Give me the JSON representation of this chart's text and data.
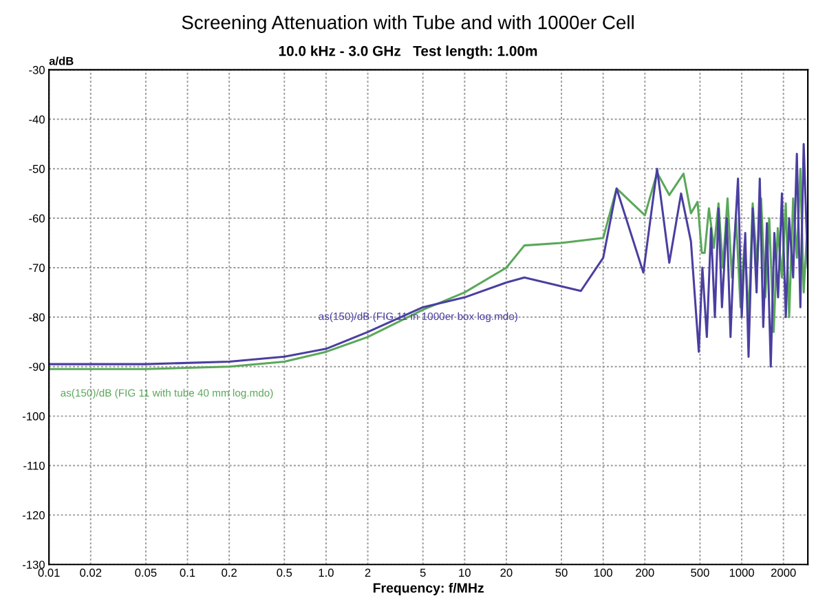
{
  "chart_data": {
    "type": "line",
    "title": "Screening Attenuation with Tube and with 1000er Cell",
    "subtitle": "10.0 kHz - 3.0 GHz   Test length: 1.00m",
    "xlabel": "Frequency: f/MHz",
    "ylabel": "a/dB",
    "log": "x",
    "grid": true,
    "line_style": "solid",
    "marker": "none",
    "xlim": [
      0.01,
      3000
    ],
    "xticks": [
      0.01,
      0.02,
      0.05,
      0.1,
      0.2,
      0.5,
      {
        "value": 1,
        "label": "1.0"
      },
      2,
      5,
      10,
      20,
      50,
      100,
      200,
      500,
      1000,
      2000
    ],
    "ylim": [
      -130,
      -30
    ],
    "yticks": [
      -30,
      -40,
      -50,
      -60,
      -70,
      -80,
      -90,
      -100,
      -110,
      -120,
      -130
    ],
    "series": [
      {
        "name": "as(150)/dB (FIG 11 with tube 40 mm log.mdo)",
        "color": "#5aa85a",
        "x": [
          0.01,
          0.05,
          0.2,
          0.5,
          1,
          2,
          5,
          10,
          20,
          27,
          50,
          100,
          125,
          200,
          245,
          300,
          380,
          430,
          480,
          515,
          540,
          580,
          630,
          680,
          730,
          790,
          850,
          910,
          980,
          1050,
          1120,
          1200,
          1290,
          1380,
          1480,
          1580,
          1700,
          1820,
          1950,
          2080,
          2200,
          2350,
          2500,
          2650,
          2800,
          3000
        ],
        "values": [
          -90.5,
          -90.5,
          -90,
          -89,
          -87,
          -84,
          -78.5,
          -75,
          -70,
          -65.5,
          -65,
          -64,
          -54,
          -59.4,
          -50.8,
          -55.3,
          -51,
          -59,
          -56.7,
          -67,
          -67,
          -58,
          -66,
          -57,
          -70,
          -56,
          -72,
          -60,
          -78,
          -65,
          -80,
          -57,
          -70,
          -56,
          -76,
          -60,
          -83,
          -62,
          -72,
          -57,
          -80,
          -56,
          -68,
          -50,
          -75,
          -60
        ]
      },
      {
        "name": "as(150)/dB (FIG 11 in 1000er box log.mdo)",
        "color": "#4a3fa0",
        "x": [
          0.01,
          0.05,
          0.2,
          0.5,
          1,
          2,
          5,
          10,
          20,
          27,
          69,
          100,
          125,
          195,
          245,
          300,
          365,
          430,
          490,
          520,
          560,
          600,
          640,
          680,
          720,
          780,
          830,
          880,
          940,
          1000,
          1060,
          1120,
          1200,
          1280,
          1350,
          1430,
          1520,
          1620,
          1720,
          1830,
          1950,
          2080,
          2200,
          2350,
          2500,
          2650,
          2800,
          3000
        ],
        "values": [
          -89.5,
          -89.5,
          -89,
          -88,
          -86.4,
          -83,
          -78,
          -76,
          -73,
          -72,
          -74.7,
          -68,
          -54,
          -71,
          -50,
          -69,
          -55,
          -64.7,
          -87,
          -70,
          -84,
          -62,
          -80,
          -58,
          -78,
          -60,
          -84,
          -66,
          -52,
          -80,
          -63,
          -88,
          -58,
          -75,
          -52,
          -82,
          -61,
          -90,
          -63,
          -76,
          -55,
          -80,
          -60,
          -72,
          -47,
          -78,
          -45,
          -70
        ]
      }
    ]
  }
}
